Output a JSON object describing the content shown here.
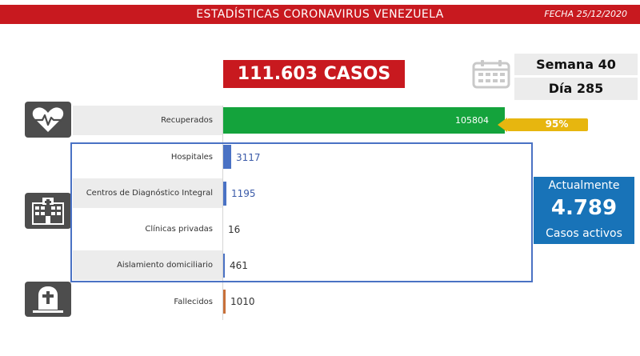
{
  "header": {
    "title": "ESTADÍSTICAS CORONAVIRUS VENEZUELA",
    "date": "FECHA 25/12/2020"
  },
  "total_cases": "111.603 CASOS",
  "week_label": "Semana 40",
  "day_label": "Día 285",
  "recovered_percent": "95%",
  "active": {
    "title": "Actualmente",
    "value": "4.789",
    "subtitle": "Casos activos"
  },
  "colors": {
    "header": "#c8191f",
    "recovered": "#14a33c",
    "facility": "#4a72c4",
    "deceased": "#c8703a",
    "percent_badge": "#e7b60f",
    "active_box": "#1873b8"
  },
  "icons": [
    "calendar-icon",
    "heart-pulse-icon",
    "hospital-icon",
    "tombstone-icon"
  ],
  "chart_data": {
    "type": "bar",
    "orientation": "horizontal",
    "categories": [
      "Recuperados",
      "Hospitales",
      "Centros de Diagnóstico Integral",
      "Clínicas privadas",
      "Aislamiento domiciliario",
      "Fallecidos"
    ],
    "values": [
      105804,
      3117,
      1195,
      16,
      461,
      1010
    ],
    "value_labels": [
      "105804",
      "3117",
      "1195",
      "16",
      "461",
      "1010"
    ],
    "bar_colors": [
      "#14a33c",
      "#4a72c4",
      "#4a72c4",
      "#4a72c4",
      "#4a72c4",
      "#c8703a"
    ],
    "xlim": [
      0,
      105804
    ]
  }
}
